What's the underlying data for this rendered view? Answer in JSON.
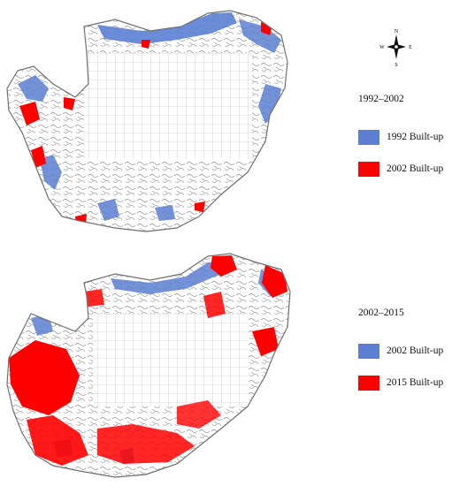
{
  "compass": {
    "north": "N",
    "south": "S",
    "east": "E",
    "west": "W"
  },
  "maps": [
    {
      "period": "1992–2002",
      "legend": [
        {
          "label": "1992 Built-up",
          "color": "#5b7fd1"
        },
        {
          "label": "2002 Built-up",
          "color": "#ff0000"
        }
      ]
    },
    {
      "period": "2002–2015",
      "legend": [
        {
          "label": "2002 Built-up",
          "color": "#5b7fd1"
        },
        {
          "label": "2015 Built-up",
          "color": "#ff0000"
        }
      ]
    }
  ],
  "colors": {
    "boundary": "#8a8a8a",
    "grid": "#b5b5b5",
    "background": "#ffffff"
  }
}
